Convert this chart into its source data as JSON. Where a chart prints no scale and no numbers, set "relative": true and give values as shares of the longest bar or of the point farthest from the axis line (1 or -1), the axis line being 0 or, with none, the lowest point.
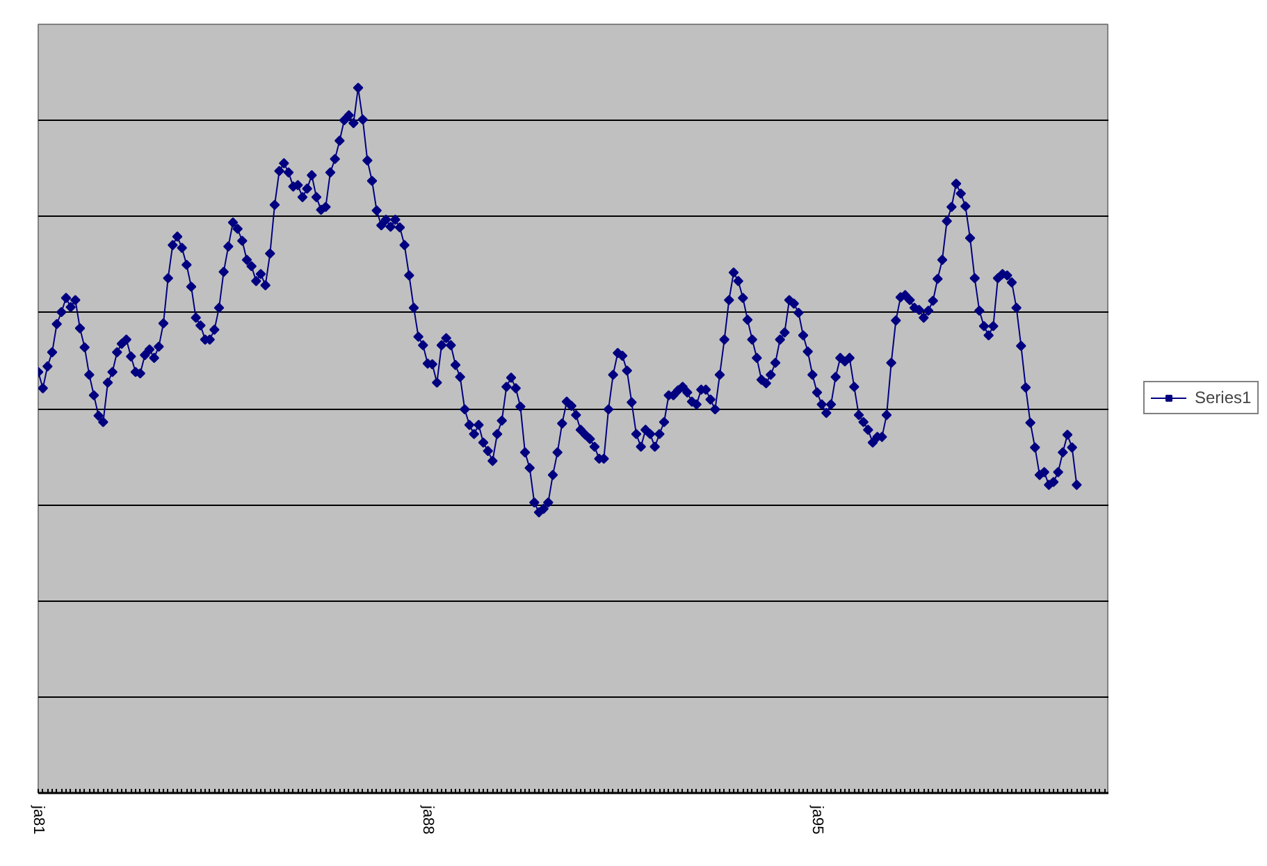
{
  "chart_data": {
    "type": "line",
    "relative": true,
    "categories": [
      "ja81",
      null,
      null,
      null,
      null,
      null,
      null,
      null,
      null,
      null,
      null,
      null,
      null,
      null,
      null,
      null,
      null,
      null,
      null,
      null,
      null,
      null,
      null,
      null,
      null,
      null,
      null,
      null,
      null,
      null,
      null,
      null,
      null,
      null,
      null,
      null,
      null,
      null,
      null,
      null,
      null,
      null,
      null,
      null,
      null,
      null,
      null,
      null,
      null,
      null,
      null,
      null,
      null,
      null,
      null,
      null,
      null,
      null,
      null,
      null,
      null,
      null,
      null,
      null,
      null,
      null,
      null,
      null,
      null,
      null,
      null,
      null,
      null,
      null,
      null,
      null,
      null,
      null,
      null,
      null,
      null,
      null,
      null,
      null,
      "ja88",
      null,
      null,
      null,
      null,
      null,
      null,
      null,
      null,
      null,
      null,
      null,
      null,
      null,
      null,
      null,
      null,
      null,
      null,
      null,
      null,
      null,
      null,
      null,
      null,
      null,
      null,
      null,
      null,
      null,
      null,
      null,
      null,
      null,
      null,
      null,
      null,
      null,
      null,
      null,
      null,
      null,
      null,
      null,
      null,
      null,
      null,
      null,
      null,
      null,
      null,
      null,
      null,
      null,
      null,
      null,
      null,
      null,
      null,
      null,
      null,
      null,
      null,
      null,
      null,
      null,
      null,
      null,
      null,
      null,
      null,
      null,
      null,
      null,
      null,
      null,
      null,
      null,
      null,
      null,
      null,
      null,
      null,
      null,
      "ja95",
      null,
      null,
      null,
      null,
      null,
      null,
      null,
      null,
      null,
      null,
      null,
      null,
      null,
      null,
      null,
      null,
      null,
      null,
      null,
      null,
      null,
      null,
      null,
      null,
      null,
      null,
      null,
      null,
      null,
      null,
      null,
      null,
      null,
      null,
      null,
      null,
      null,
      null,
      null,
      null,
      null,
      null,
      null,
      null,
      null,
      null,
      null,
      null,
      null,
      null,
      null,
      null,
      null,
      null,
      null,
      null,
      null,
      null,
      null,
      null,
      null,
      null,
      null
    ],
    "series": [
      {
        "name": "Series1",
        "color": "#000080",
        "values": [
          0.597,
          0.574,
          0.605,
          0.625,
          0.665,
          0.682,
          0.702,
          0.689,
          0.699,
          0.659,
          0.632,
          0.593,
          0.564,
          0.535,
          0.526,
          0.582,
          0.597,
          0.625,
          0.637,
          0.643,
          0.619,
          0.597,
          0.595,
          0.621,
          0.629,
          0.617,
          0.633,
          0.666,
          0.73,
          0.777,
          0.789,
          0.773,
          0.749,
          0.718,
          0.674,
          0.663,
          0.643,
          0.643,
          0.657,
          0.688,
          0.739,
          0.775,
          0.809,
          0.8,
          0.783,
          0.756,
          0.747,
          0.726,
          0.736,
          0.72,
          0.765,
          0.834,
          0.882,
          0.893,
          0.88,
          0.86,
          0.862,
          0.845,
          0.857,
          0.876,
          0.845,
          0.827,
          0.831,
          0.88,
          0.899,
          0.925,
          0.954,
          0.961,
          0.95,
          1,
          0.955,
          0.897,
          0.868,
          0.826,
          0.805,
          0.813,
          0.803,
          0.813,
          0.802,
          0.777,
          0.734,
          0.688,
          0.647,
          0.635,
          0.609,
          0.608,
          0.582,
          0.635,
          0.645,
          0.635,
          0.607,
          0.59,
          0.544,
          0.522,
          0.509,
          0.522,
          0.497,
          0.485,
          0.471,
          0.509,
          0.528,
          0.576,
          0.589,
          0.574,
          0.548,
          0.483,
          0.461,
          0.412,
          0.398,
          0.403,
          0.412,
          0.451,
          0.483,
          0.524,
          0.555,
          0.549,
          0.536,
          0.515,
          0.508,
          0.502,
          0.491,
          0.474,
          0.474,
          0.544,
          0.593,
          0.624,
          0.62,
          0.599,
          0.554,
          0.509,
          0.491,
          0.515,
          0.509,
          0.491,
          0.509,
          0.526,
          0.564,
          0.564,
          0.571,
          0.576,
          0.568,
          0.555,
          0.551,
          0.572,
          0.572,
          0.558,
          0.544,
          0.593,
          0.643,
          0.699,
          0.738,
          0.726,
          0.702,
          0.671,
          0.643,
          0.617,
          0.586,
          0.581,
          0.593,
          0.61,
          0.643,
          0.653,
          0.699,
          0.694,
          0.681,
          0.649,
          0.626,
          0.593,
          0.568,
          0.551,
          0.539,
          0.551,
          0.59,
          0.617,
          0.612,
          0.617,
          0.576,
          0.536,
          0.526,
          0.515,
          0.497,
          0.505,
          0.505,
          0.536,
          0.61,
          0.67,
          0.703,
          0.706,
          0.699,
          0.688,
          0.685,
          0.674,
          0.684,
          0.698,
          0.729,
          0.756,
          0.811,
          0.831,
          0.864,
          0.85,
          0.832,
          0.787,
          0.73,
          0.684,
          0.662,
          0.649,
          0.662,
          0.73,
          0.736,
          0.734,
          0.724,
          0.688,
          0.634,
          0.575,
          0.525,
          0.49,
          0.451,
          0.455,
          0.437,
          0.441,
          0.455,
          0.483,
          0.508,
          0.49,
          0.437,
          null,
          null,
          null,
          null,
          null,
          null,
          null
        ]
      }
    ],
    "marker": "diamond",
    "line_style": "solid",
    "grid": "y",
    "legend": "right"
  }
}
